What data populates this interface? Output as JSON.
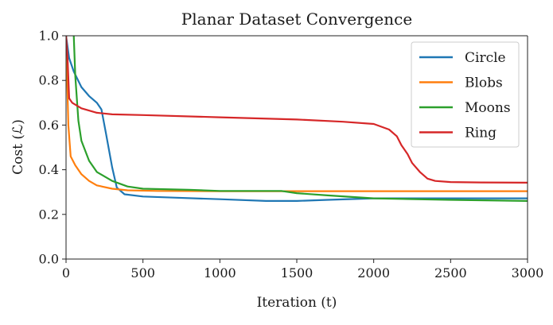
{
  "chart_data": {
    "type": "line",
    "title": "Planar Dataset Convergence",
    "xlabel": "Iteration (t)",
    "ylabel": "Cost (ℒ)",
    "xlim": [
      0,
      3000
    ],
    "ylim": [
      0.0,
      1.0
    ],
    "xticks": [
      "0",
      "500",
      "1000",
      "1500",
      "2000",
      "2500",
      "3000"
    ],
    "yticks": [
      "0.0",
      "0.2",
      "0.4",
      "0.6",
      "0.8",
      "1.0"
    ],
    "grid": false,
    "legend_position": "top-right",
    "series": [
      {
        "name": "Circle",
        "color": "#1f77b4",
        "points": [
          [
            0,
            1.0
          ],
          [
            20,
            0.9
          ],
          [
            50,
            0.84
          ],
          [
            100,
            0.77
          ],
          [
            150,
            0.73
          ],
          [
            200,
            0.7
          ],
          [
            230,
            0.67
          ],
          [
            260,
            0.56
          ],
          [
            300,
            0.41
          ],
          [
            330,
            0.32
          ],
          [
            380,
            0.29
          ],
          [
            500,
            0.28
          ],
          [
            700,
            0.275
          ],
          [
            1000,
            0.268
          ],
          [
            1300,
            0.26
          ],
          [
            1500,
            0.26
          ],
          [
            1700,
            0.265
          ],
          [
            2000,
            0.272
          ],
          [
            2500,
            0.272
          ],
          [
            3000,
            0.272
          ]
        ]
      },
      {
        "name": "Blobs",
        "color": "#ff7f0e",
        "points": [
          [
            0,
            1.0
          ],
          [
            15,
            0.6
          ],
          [
            30,
            0.46
          ],
          [
            60,
            0.42
          ],
          [
            100,
            0.38
          ],
          [
            150,
            0.35
          ],
          [
            200,
            0.33
          ],
          [
            300,
            0.315
          ],
          [
            400,
            0.308
          ],
          [
            600,
            0.305
          ],
          [
            1000,
            0.304
          ],
          [
            2000,
            0.304
          ],
          [
            3000,
            0.304
          ]
        ]
      },
      {
        "name": "Moons",
        "color": "#2ca02c",
        "points": [
          [
            50,
            1.0
          ],
          [
            60,
            0.82
          ],
          [
            80,
            0.62
          ],
          [
            100,
            0.53
          ],
          [
            150,
            0.44
          ],
          [
            200,
            0.39
          ],
          [
            300,
            0.35
          ],
          [
            400,
            0.325
          ],
          [
            500,
            0.315
          ],
          [
            800,
            0.31
          ],
          [
            1000,
            0.305
          ],
          [
            1400,
            0.305
          ],
          [
            1500,
            0.295
          ],
          [
            1700,
            0.285
          ],
          [
            2000,
            0.272
          ],
          [
            2500,
            0.265
          ],
          [
            3000,
            0.26
          ]
        ]
      },
      {
        "name": "Ring",
        "color": "#d62728",
        "points": [
          [
            0,
            1.0
          ],
          [
            10,
            0.9
          ],
          [
            20,
            0.72
          ],
          [
            40,
            0.7
          ],
          [
            100,
            0.675
          ],
          [
            200,
            0.655
          ],
          [
            300,
            0.648
          ],
          [
            500,
            0.645
          ],
          [
            1000,
            0.635
          ],
          [
            1500,
            0.625
          ],
          [
            1800,
            0.615
          ],
          [
            2000,
            0.605
          ],
          [
            2100,
            0.58
          ],
          [
            2150,
            0.55
          ],
          [
            2180,
            0.51
          ],
          [
            2220,
            0.47
          ],
          [
            2250,
            0.43
          ],
          [
            2300,
            0.39
          ],
          [
            2350,
            0.36
          ],
          [
            2400,
            0.35
          ],
          [
            2500,
            0.345
          ],
          [
            2700,
            0.343
          ],
          [
            3000,
            0.342
          ]
        ]
      }
    ]
  }
}
